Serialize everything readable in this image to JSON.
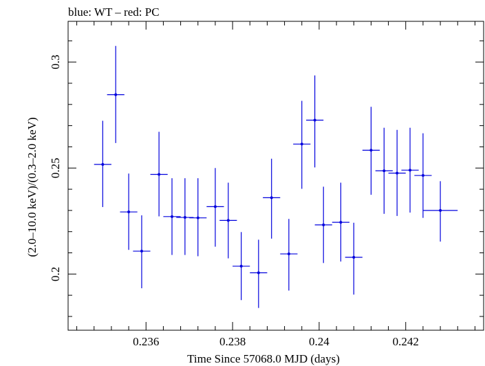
{
  "chart_data": {
    "type": "scatter",
    "title": "blue: WT – red: PC",
    "xlabel": "Time Since 57068.0 MJD (days)",
    "ylabel": "(2.0–10.0 keV)/(0.3–2.0 keV)",
    "xlim": [
      0.2342,
      0.2438
    ],
    "ylim": [
      0.1735,
      0.3192
    ],
    "x_ticks": [
      "0.236",
      "0.238",
      "0.24",
      "0.242"
    ],
    "x_tick_values": [
      0.236,
      0.238,
      0.24,
      0.242
    ],
    "y_ticks": [
      "0.2",
      "0.25",
      "0.3"
    ],
    "y_tick_values": [
      0.2,
      0.25,
      0.3
    ],
    "grid": false,
    "color": "#0000dd",
    "series": [
      {
        "x": [
          0.235,
          0.2353,
          0.2356,
          0.2359,
          0.2363,
          0.2366,
          0.2369,
          0.2372,
          0.2376,
          0.2379,
          0.2382,
          0.2386,
          0.2389,
          0.2393,
          0.2396,
          0.2399,
          0.2401,
          0.2405,
          0.2408,
          0.2412,
          0.2415,
          0.2418,
          0.2421,
          0.2424,
          0.2428
        ],
        "y": [
          0.2517,
          0.2846,
          0.2293,
          0.2108,
          0.247,
          0.2271,
          0.2267,
          0.2265,
          0.2318,
          0.2253,
          0.2037,
          0.2006,
          0.236,
          0.2095,
          0.2613,
          0.2726,
          0.2232,
          0.2244,
          0.2079,
          0.2584,
          0.2487,
          0.2476,
          0.249,
          0.2465,
          0.23
        ],
        "xerr": [
          0.0002,
          0.0002,
          0.0002,
          0.0002,
          0.0002,
          0.0002,
          0.0002,
          0.0002,
          0.0002,
          0.0002,
          0.0002,
          0.0002,
          0.0002,
          0.0002,
          0.0002,
          0.0002,
          0.0002,
          0.0002,
          0.0002,
          0.0002,
          0.0002,
          0.0002,
          0.0002,
          0.0002,
          0.0004
        ],
        "ylo": [
          0.2316,
          0.2618,
          0.2114,
          0.1933,
          0.2272,
          0.209,
          0.209,
          0.2084,
          0.2129,
          0.2074,
          0.1877,
          0.184,
          0.2167,
          0.1922,
          0.2402,
          0.2503,
          0.2052,
          0.2059,
          0.1903,
          0.2374,
          0.2284,
          0.2274,
          0.229,
          0.2265,
          0.2153
        ],
        "yhi": [
          0.2723,
          0.3076,
          0.2474,
          0.2277,
          0.2671,
          0.2452,
          0.2452,
          0.2452,
          0.25,
          0.2431,
          0.2198,
          0.2162,
          0.2544,
          0.226,
          0.2817,
          0.2937,
          0.2412,
          0.2431,
          0.2242,
          0.2789,
          0.269,
          0.268,
          0.269,
          0.2664,
          0.2438
        ]
      }
    ]
  }
}
